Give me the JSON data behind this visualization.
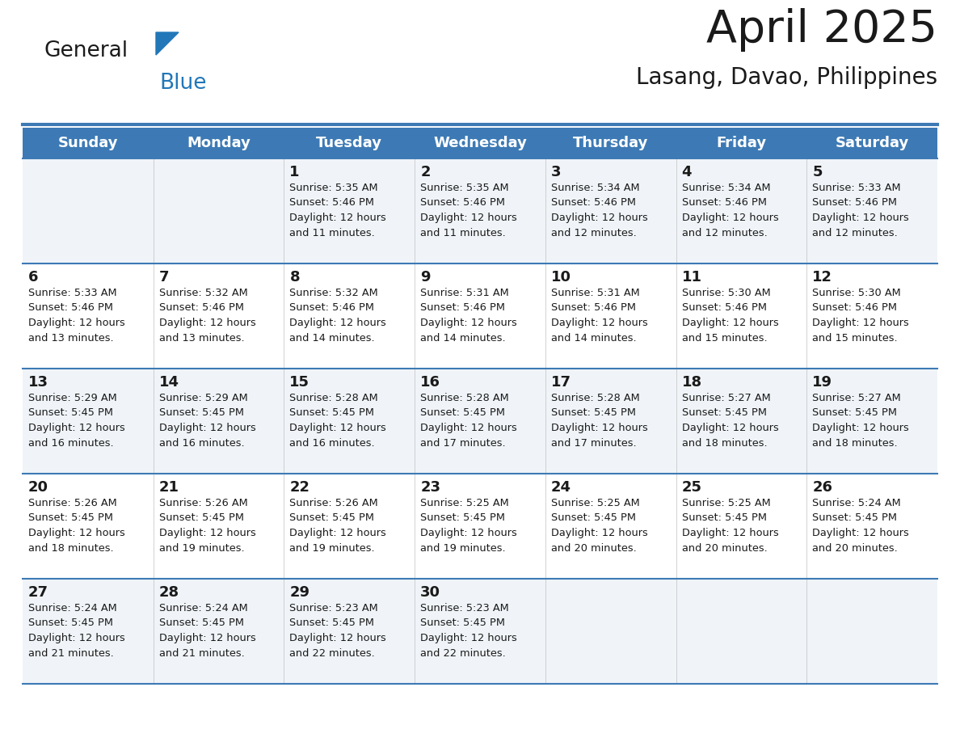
{
  "title": "April 2025",
  "subtitle": "Lasang, Davao, Philippines",
  "header_bg": "#3d7ab5",
  "header_text": "#ffffff",
  "row_bg_odd": "#f0f4f8",
  "row_bg_even": "#ffffff",
  "border_color": "#3d7ab5",
  "cell_divider": "#c0c0c0",
  "day_headers": [
    "Sunday",
    "Monday",
    "Tuesday",
    "Wednesday",
    "Thursday",
    "Friday",
    "Saturday"
  ],
  "calendar": [
    [
      "",
      "",
      "1\nSunrise: 5:35 AM\nSunset: 5:46 PM\nDaylight: 12 hours\nand 11 minutes.",
      "2\nSunrise: 5:35 AM\nSunset: 5:46 PM\nDaylight: 12 hours\nand 11 minutes.",
      "3\nSunrise: 5:34 AM\nSunset: 5:46 PM\nDaylight: 12 hours\nand 12 minutes.",
      "4\nSunrise: 5:34 AM\nSunset: 5:46 PM\nDaylight: 12 hours\nand 12 minutes.",
      "5\nSunrise: 5:33 AM\nSunset: 5:46 PM\nDaylight: 12 hours\nand 12 minutes."
    ],
    [
      "6\nSunrise: 5:33 AM\nSunset: 5:46 PM\nDaylight: 12 hours\nand 13 minutes.",
      "7\nSunrise: 5:32 AM\nSunset: 5:46 PM\nDaylight: 12 hours\nand 13 minutes.",
      "8\nSunrise: 5:32 AM\nSunset: 5:46 PM\nDaylight: 12 hours\nand 14 minutes.",
      "9\nSunrise: 5:31 AM\nSunset: 5:46 PM\nDaylight: 12 hours\nand 14 minutes.",
      "10\nSunrise: 5:31 AM\nSunset: 5:46 PM\nDaylight: 12 hours\nand 14 minutes.",
      "11\nSunrise: 5:30 AM\nSunset: 5:46 PM\nDaylight: 12 hours\nand 15 minutes.",
      "12\nSunrise: 5:30 AM\nSunset: 5:46 PM\nDaylight: 12 hours\nand 15 minutes."
    ],
    [
      "13\nSunrise: 5:29 AM\nSunset: 5:45 PM\nDaylight: 12 hours\nand 16 minutes.",
      "14\nSunrise: 5:29 AM\nSunset: 5:45 PM\nDaylight: 12 hours\nand 16 minutes.",
      "15\nSunrise: 5:28 AM\nSunset: 5:45 PM\nDaylight: 12 hours\nand 16 minutes.",
      "16\nSunrise: 5:28 AM\nSunset: 5:45 PM\nDaylight: 12 hours\nand 17 minutes.",
      "17\nSunrise: 5:28 AM\nSunset: 5:45 PM\nDaylight: 12 hours\nand 17 minutes.",
      "18\nSunrise: 5:27 AM\nSunset: 5:45 PM\nDaylight: 12 hours\nand 18 minutes.",
      "19\nSunrise: 5:27 AM\nSunset: 5:45 PM\nDaylight: 12 hours\nand 18 minutes."
    ],
    [
      "20\nSunrise: 5:26 AM\nSunset: 5:45 PM\nDaylight: 12 hours\nand 18 minutes.",
      "21\nSunrise: 5:26 AM\nSunset: 5:45 PM\nDaylight: 12 hours\nand 19 minutes.",
      "22\nSunrise: 5:26 AM\nSunset: 5:45 PM\nDaylight: 12 hours\nand 19 minutes.",
      "23\nSunrise: 5:25 AM\nSunset: 5:45 PM\nDaylight: 12 hours\nand 19 minutes.",
      "24\nSunrise: 5:25 AM\nSunset: 5:45 PM\nDaylight: 12 hours\nand 20 minutes.",
      "25\nSunrise: 5:25 AM\nSunset: 5:45 PM\nDaylight: 12 hours\nand 20 minutes.",
      "26\nSunrise: 5:24 AM\nSunset: 5:45 PM\nDaylight: 12 hours\nand 20 minutes."
    ],
    [
      "27\nSunrise: 5:24 AM\nSunset: 5:45 PM\nDaylight: 12 hours\nand 21 minutes.",
      "28\nSunrise: 5:24 AM\nSunset: 5:45 PM\nDaylight: 12 hours\nand 21 minutes.",
      "29\nSunrise: 5:23 AM\nSunset: 5:45 PM\nDaylight: 12 hours\nand 22 minutes.",
      "30\nSunrise: 5:23 AM\nSunset: 5:45 PM\nDaylight: 12 hours\nand 22 minutes.",
      "",
      "",
      ""
    ]
  ],
  "logo_color_general": "#1a1a1a",
  "logo_color_blue": "#2177b8",
  "logo_triangle_color": "#2177b8",
  "fig_width": 11.88,
  "fig_height": 9.18,
  "dpi": 100
}
